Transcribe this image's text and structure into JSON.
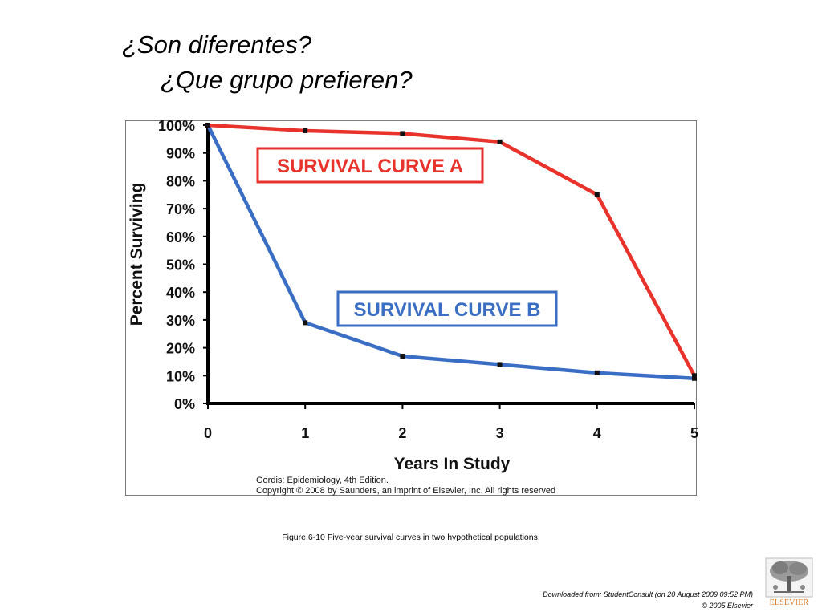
{
  "slide": {
    "title": "¿Son diferentes?",
    "subtitle": "¿Que grupo prefieren?"
  },
  "figure": {
    "caption": "Figure 6-10 Five-year survival curves in two hypothetical populations.",
    "source_line1": "Gordis: Epidemiology, 4th Edition.",
    "source_line2": "Copyright © 2008 by Saunders, an imprint of Elsevier, Inc. All rights reserved"
  },
  "footer": {
    "download_note": "Downloaded from: StudentConsult (on 20 August 2009 09:52 PM)",
    "copyright": "© 2005 Elsevier",
    "publisher": "ELSEVIER"
  },
  "chart_data": {
    "type": "line",
    "xlabel": "Years In Study",
    "ylabel": "Percent Surviving",
    "x": [
      0,
      1,
      2,
      3,
      4,
      5
    ],
    "xlim": [
      0,
      5
    ],
    "ylim": [
      0,
      100
    ],
    "x_tick_labels": [
      "0",
      "1",
      "2",
      "3",
      "4",
      "5"
    ],
    "y_tick_values": [
      0,
      10,
      20,
      30,
      40,
      50,
      60,
      70,
      80,
      90,
      100
    ],
    "y_tick_labels": [
      "0%",
      "10%",
      "20%",
      "30%",
      "40%",
      "50%",
      "60%",
      "70%",
      "80%",
      "90%",
      "100%"
    ],
    "grid": false,
    "series": [
      {
        "name": "SURVIVAL CURVE A",
        "color": "#e8322b",
        "values": [
          100,
          98,
          97,
          94,
          75,
          10
        ]
      },
      {
        "name": "SURVIVAL CURVE B",
        "color": "#3a6ec5",
        "values": [
          100,
          29,
          17,
          14,
          11,
          9
        ]
      }
    ]
  }
}
